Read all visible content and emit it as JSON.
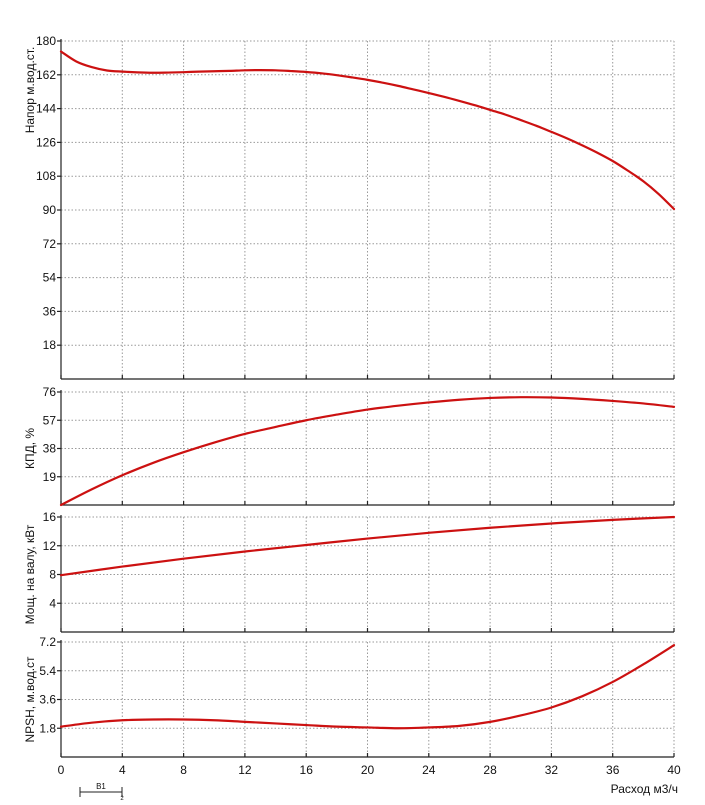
{
  "colors": {
    "curve": "#cc1111",
    "grid": "#9a9a9a",
    "axis": "#222222",
    "text": "#111111"
  },
  "x_axis": {
    "label": "Расход м3/ч",
    "ticks": [
      0,
      4,
      8,
      12,
      16,
      20,
      24,
      28,
      32,
      36,
      40
    ],
    "range": [
      0,
      40
    ]
  },
  "legend_marker": {
    "label": "B1",
    "sub_label": "2"
  },
  "chart_data": [
    {
      "type": "line",
      "ylabel": "Напор м.вод.ст.",
      "ylim": [
        0,
        180
      ],
      "y_ticks": [
        18,
        36,
        54,
        72,
        90,
        108,
        126,
        144,
        162,
        180
      ],
      "grid": true,
      "series": [
        {
          "x": [
            0,
            1,
            2,
            3,
            4,
            5,
            6,
            7,
            8,
            9,
            10,
            11,
            12,
            13,
            14,
            15,
            16,
            17,
            18,
            19,
            20,
            21,
            22,
            23,
            24,
            25,
            26,
            27,
            28,
            29,
            30,
            31,
            32,
            33,
            34,
            35,
            36,
            37,
            38,
            39,
            40
          ],
          "y": [
            174.4,
            169.1,
            166.1,
            164.3,
            163.7,
            163.3,
            163.1,
            163.2,
            163.4,
            163.7,
            163.9,
            164.1,
            164.4,
            164.5,
            164.4,
            164.0,
            163.5,
            162.8,
            161.8,
            160.6,
            159.3,
            157.8,
            156.1,
            154.2,
            152.3,
            150.3,
            148.1,
            145.8,
            143.3,
            140.8,
            137.9,
            134.9,
            131.6,
            128.2,
            124.5,
            120.5,
            116.1,
            110.9,
            105.3,
            98.5,
            90.5
          ]
        }
      ]
    },
    {
      "type": "line",
      "ylabel": "КПД, %",
      "ylim": [
        0,
        76
      ],
      "y_ticks": [
        19,
        38,
        57,
        76
      ],
      "grid": true,
      "series": [
        {
          "x": [
            0,
            2,
            4,
            6,
            8,
            10,
            12,
            14,
            16,
            18,
            20,
            22,
            24,
            26,
            28,
            30,
            32,
            34,
            36,
            38,
            40
          ],
          "y": [
            0,
            10.5,
            20,
            28.3,
            35.5,
            42,
            47.8,
            52.5,
            57,
            60.8,
            64.2,
            66.8,
            69,
            70.8,
            72,
            72.5,
            72.3,
            71.4,
            70,
            68.3,
            66
          ]
        }
      ]
    },
    {
      "type": "line",
      "ylabel": "Мощ. на валу, кВт",
      "ylim": [
        0,
        16
      ],
      "y_ticks": [
        4,
        8,
        12,
        16
      ],
      "grid": true,
      "series": [
        {
          "x": [
            0,
            4,
            8,
            12,
            16,
            20,
            24,
            28,
            32,
            36,
            40
          ],
          "y": [
            7.9,
            9.1,
            10.2,
            11.2,
            12.1,
            13,
            13.8,
            14.5,
            15.1,
            15.6,
            16
          ]
        }
      ]
    },
    {
      "type": "line",
      "ylabel": "NPSH, м.вод.ст",
      "ylim": [
        0,
        7.2
      ],
      "y_ticks": [
        1.8,
        3.6,
        5.4,
        7.2
      ],
      "grid": true,
      "series": [
        {
          "x": [
            0,
            2,
            4,
            6,
            8,
            10,
            12,
            14,
            16,
            18,
            20,
            22,
            24,
            26,
            28,
            30,
            32,
            34,
            36,
            38,
            40
          ],
          "y": [
            1.9,
            2.15,
            2.3,
            2.35,
            2.35,
            2.3,
            2.2,
            2.1,
            2.0,
            1.9,
            1.85,
            1.8,
            1.85,
            1.95,
            2.2,
            2.6,
            3.1,
            3.8,
            4.7,
            5.8,
            7.0
          ]
        }
      ]
    }
  ]
}
